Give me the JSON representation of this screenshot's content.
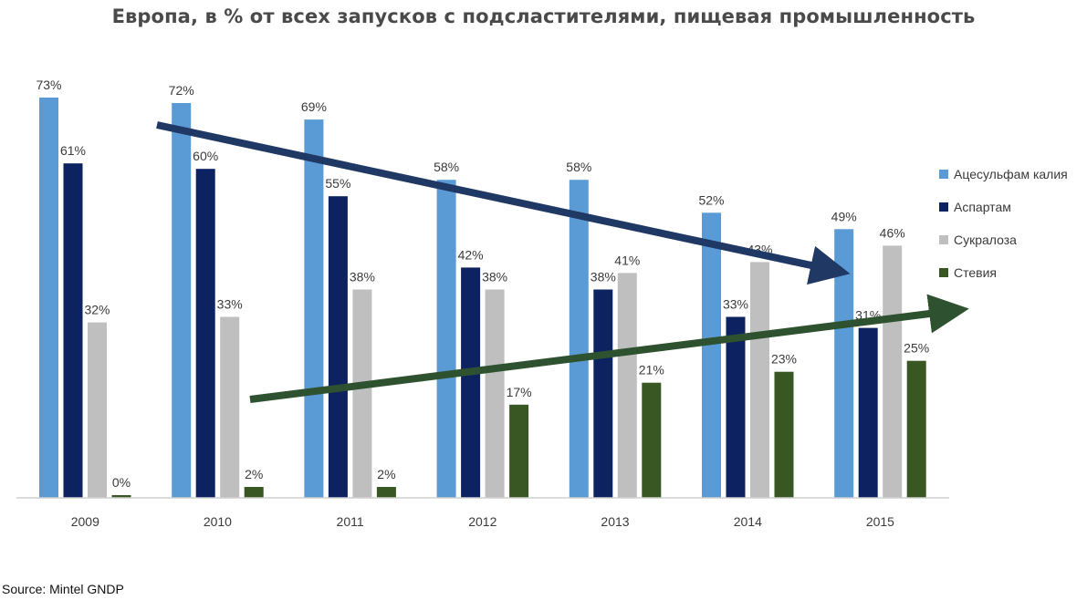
{
  "chart_data": {
    "type": "bar",
    "title": "Европа, в % от всех запусков с подсластителями, пищевая промышленность",
    "categories": [
      "2009",
      "2010",
      "2011",
      "2012",
      "2013",
      "2014",
      "2015"
    ],
    "series": [
      {
        "name": "Ацесульфам калия",
        "color": "#5b9bd5",
        "values": [
          73,
          72,
          69,
          58,
          58,
          52,
          49
        ],
        "labels": [
          "73%",
          "72%",
          "69%",
          "58%",
          "58%",
          "52%",
          "49%"
        ]
      },
      {
        "name": "Аспартам",
        "color": "#0d2260",
        "values": [
          61,
          60,
          55,
          42,
          38,
          33,
          31
        ],
        "labels": [
          "61%",
          "60%",
          "55%",
          "42%",
          "38%",
          "33%",
          "31%"
        ]
      },
      {
        "name": "Сукралоза",
        "color": "#bfbfbf",
        "values": [
          32,
          33,
          38,
          38,
          41,
          43,
          46
        ],
        "labels": [
          "32%",
          "33%",
          "38%",
          "38%",
          "41%",
          "43%",
          "46%"
        ]
      },
      {
        "name": "Стевия",
        "color": "#385723",
        "values": [
          0,
          2,
          2,
          17,
          21,
          23,
          25
        ],
        "labels": [
          "0%",
          "2%",
          "2%",
          "17%",
          "21%",
          "23%",
          "25%"
        ]
      }
    ],
    "ylim": [
      0,
      73
    ],
    "xlabel": "",
    "ylabel": "",
    "grid": false,
    "legend": "right",
    "trend_arrows": [
      {
        "name": "declining-trend",
        "color": "#1f3864"
      },
      {
        "name": "rising-trend",
        "color": "#2e5230"
      }
    ]
  },
  "source": "Source: Mintel GNDP"
}
